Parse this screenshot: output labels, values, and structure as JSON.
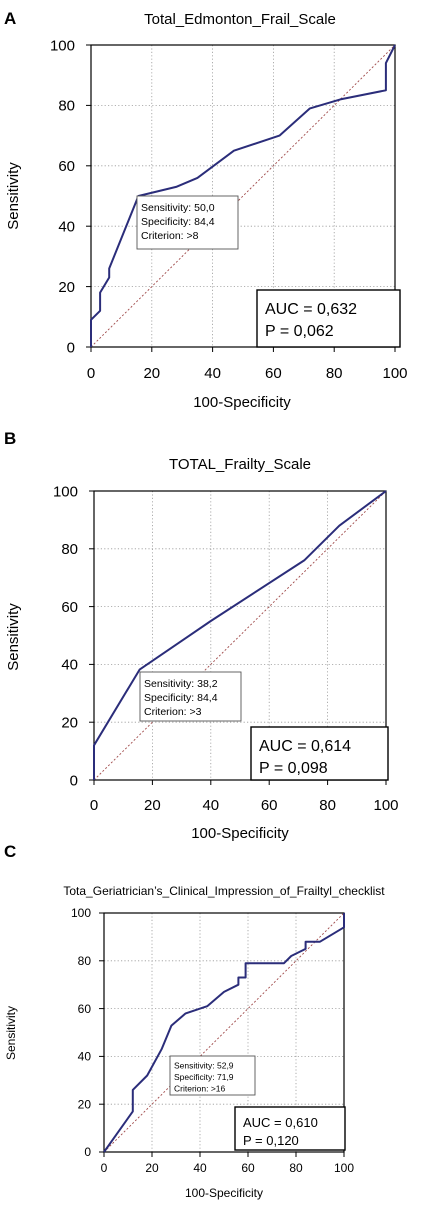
{
  "chart_data": [
    {
      "type": "line",
      "panel": "A",
      "title": "Total_Edmonton_Frail_Scale",
      "xlabel": "100-Specificity",
      "ylabel": "Sensitivity",
      "xlim": [
        0,
        100
      ],
      "ylim": [
        0,
        100
      ],
      "xticks": [
        "0",
        "20",
        "40",
        "60",
        "80",
        "100"
      ],
      "yticks": [
        "0",
        "20",
        "40",
        "60",
        "80",
        "100"
      ],
      "grid": true,
      "reference_line": true,
      "roc": {
        "x": [
          0,
          0,
          3,
          3,
          6,
          6,
          15.6,
          28,
          35,
          47,
          62,
          72,
          82,
          97,
          97,
          100
        ],
        "y": [
          0,
          9,
          12,
          18,
          23,
          26,
          50,
          53,
          56,
          65,
          70,
          79,
          82,
          85,
          94,
          100
        ]
      },
      "annotation": [
        "Sensitivity: 50,0",
        "Specificity: 84,4",
        "Criterion: >8"
      ],
      "stats": [
        "AUC = 0,632",
        "P = 0,062"
      ]
    },
    {
      "type": "line",
      "panel": "B",
      "title": "TOTAL_Frailty_Scale",
      "xlabel": "100-Specificity",
      "ylabel": "Sensitivity",
      "xlim": [
        0,
        100
      ],
      "ylim": [
        0,
        100
      ],
      "xticks": [
        "0",
        "20",
        "40",
        "60",
        "80",
        "100"
      ],
      "yticks": [
        "0",
        "20",
        "40",
        "60",
        "80",
        "100"
      ],
      "grid": true,
      "reference_line": true,
      "roc": {
        "x": [
          0,
          0,
          15.6,
          40,
          72,
          84,
          100
        ],
        "y": [
          0,
          12,
          38.2,
          55,
          76,
          88,
          100
        ]
      },
      "annotation": [
        "Sensitivity: 38,2",
        "Specificity: 84,4",
        "Criterion: >3"
      ],
      "stats": [
        "AUC = 0,614",
        "P = 0,098"
      ]
    },
    {
      "type": "line",
      "panel": "C",
      "title": "Tota_Geriatrician’s_Clinical_Impression_of_Frailtyl_checklist",
      "xlabel": "100-Specificity",
      "ylabel": "Sensitivity",
      "xlim": [
        0,
        100
      ],
      "ylim": [
        0,
        100
      ],
      "xticks": [
        "0",
        "20",
        "40",
        "60",
        "80",
        "100"
      ],
      "yticks": [
        "0",
        "20",
        "40",
        "60",
        "80",
        "100"
      ],
      "grid": true,
      "reference_line": true,
      "roc": {
        "x": [
          0,
          12,
          12,
          18,
          24,
          28.1,
          34,
          43,
          50,
          56,
          56,
          59,
          59,
          75,
          78,
          84,
          84,
          90,
          100,
          100
        ],
        "y": [
          0,
          17,
          26,
          32,
          43,
          52.9,
          58,
          61,
          67,
          70,
          73,
          73,
          79,
          79,
          82,
          85,
          88,
          88,
          94,
          100
        ]
      },
      "annotation": [
        "Sensitivity: 52,9",
        "Specificity: 71,9",
        "Criterion: >16"
      ],
      "stats": [
        "AUC = 0,610",
        "P = 0,120"
      ]
    }
  ]
}
